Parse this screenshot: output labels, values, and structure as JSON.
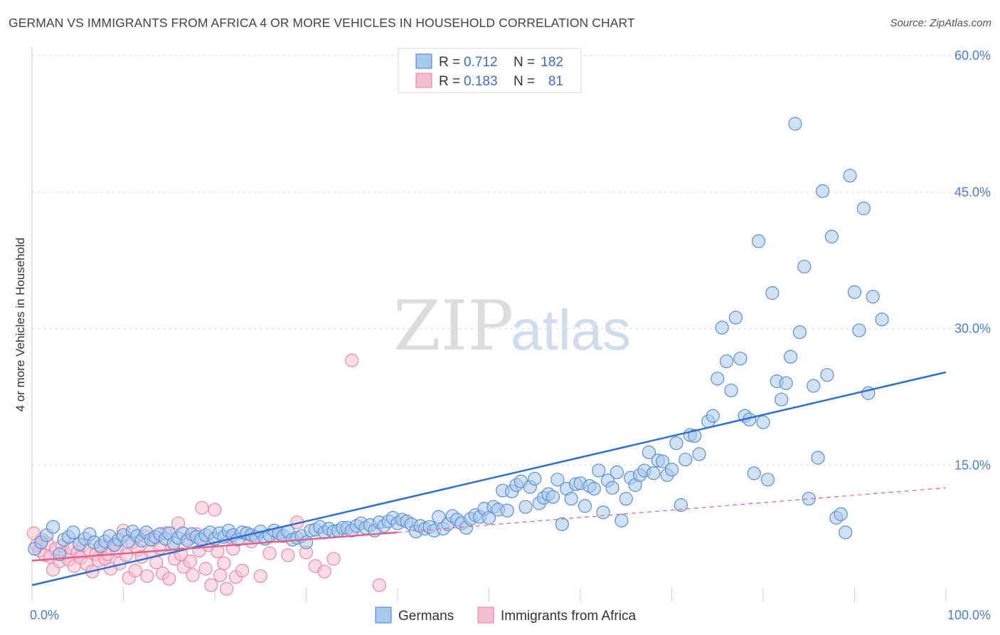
{
  "title": "GERMAN VS IMMIGRANTS FROM AFRICA 4 OR MORE VEHICLES IN HOUSEHOLD CORRELATION CHART",
  "source": "Source: ZipAtlas.com",
  "watermark": {
    "zip": "ZIP",
    "atlas": "atlas"
  },
  "colors": {
    "germans_fill": "#a9c8ee",
    "germans_stroke": "#5a8fd6",
    "germans_line": "#2f6fcf",
    "africa_fill": "#f6bfd0",
    "africa_stroke": "#e889a8",
    "africa_line": "#e0628c",
    "grid": "#dcdcdc",
    "tick_text": "#4a7fd0"
  },
  "legend": {
    "rows": [
      {
        "r_label": "R =",
        "r_value": "0.712",
        "n_label": "N =",
        "n_value": "182"
      },
      {
        "r_label": "R =",
        "r_value": "0.183",
        "n_label": "N =",
        "n_value": "81"
      }
    ]
  },
  "chart_data": {
    "type": "scatter",
    "ylabel": "4 or more Vehicles in Household",
    "xlim": [
      0,
      100
    ],
    "ylim": [
      0,
      60
    ],
    "x_tick_labels": [
      "0.0%",
      "100.0%"
    ],
    "y_ticks": [
      15,
      30,
      45,
      60
    ],
    "y_tick_labels": [
      "15.0%",
      "30.0%",
      "45.0%",
      "60.0%"
    ],
    "grid": true,
    "legend_position": "top-center",
    "series": [
      {
        "name": "Germans",
        "R": 0.712,
        "N": 182,
        "trend": {
          "x": [
            0,
            100
          ],
          "y": [
            1.8,
            25.2
          ]
        },
        "points": [
          [
            0.3,
            5.8
          ],
          [
            1,
            6.5
          ],
          [
            1.6,
            7.3
          ],
          [
            2.3,
            8.2
          ],
          [
            3,
            5.2
          ],
          [
            3.5,
            6.8
          ],
          [
            4,
            7.1
          ],
          [
            4.5,
            7.6
          ],
          [
            5.2,
            6.3
          ],
          [
            5.8,
            6.9
          ],
          [
            6.3,
            7.4
          ],
          [
            6.8,
            6.5
          ],
          [
            7.5,
            6.1
          ],
          [
            8,
            6.6
          ],
          [
            8.5,
            7.2
          ],
          [
            9,
            6.2
          ],
          [
            9.5,
            6.8
          ],
          [
            10,
            7.3
          ],
          [
            10.5,
            6.6
          ],
          [
            11,
            7.7
          ],
          [
            11.5,
            7.2
          ],
          [
            12,
            6.7
          ],
          [
            12.5,
            7.6
          ],
          [
            13,
            6.8
          ],
          [
            13.5,
            7.1
          ],
          [
            14,
            7.4
          ],
          [
            14.6,
            6.9
          ],
          [
            15,
            7.5
          ],
          [
            15.5,
            6.4
          ],
          [
            16,
            7
          ],
          [
            16.5,
            7.5
          ],
          [
            17,
            6.7
          ],
          [
            17.5,
            7.4
          ],
          [
            18,
            7.1
          ],
          [
            18.5,
            6.8
          ],
          [
            19,
            7.3
          ],
          [
            19.5,
            7.6
          ],
          [
            20,
            6.9
          ],
          [
            20.5,
            7.5
          ],
          [
            21,
            7.1
          ],
          [
            21.5,
            7.8
          ],
          [
            22,
            7.3
          ],
          [
            22.5,
            6.8
          ],
          [
            23,
            7.6
          ],
          [
            23.5,
            7.5
          ],
          [
            24,
            7.3
          ],
          [
            24.5,
            7.1
          ],
          [
            25,
            7.7
          ],
          [
            25.5,
            6.9
          ],
          [
            26,
            7.3
          ],
          [
            26.5,
            7.8
          ],
          [
            27,
            7.5
          ],
          [
            27.5,
            7.2
          ],
          [
            28,
            7.7
          ],
          [
            28.5,
            6.8
          ],
          [
            29,
            7
          ],
          [
            29.5,
            7.2
          ],
          [
            30,
            6.5
          ],
          [
            30.5,
            7.8
          ],
          [
            31,
            7.9
          ],
          [
            31.5,
            8.2
          ],
          [
            32,
            7.6
          ],
          [
            32.5,
            8
          ],
          [
            33,
            7.7
          ],
          [
            33.5,
            7.8
          ],
          [
            34,
            8.1
          ],
          [
            34.5,
            8.1
          ],
          [
            35,
            7.8
          ],
          [
            35.5,
            8.3
          ],
          [
            36,
            8.6
          ],
          [
            36.5,
            8.1
          ],
          [
            37,
            8.4
          ],
          [
            37.5,
            7.8
          ],
          [
            38,
            8.7
          ],
          [
            38.5,
            8.3
          ],
          [
            39,
            8.8
          ],
          [
            39.5,
            9.2
          ],
          [
            40,
            8.6
          ],
          [
            40.5,
            9
          ],
          [
            41,
            8.8
          ],
          [
            41.5,
            8.5
          ],
          [
            42,
            7.7
          ],
          [
            42.5,
            8.3
          ],
          [
            43,
            8
          ],
          [
            43.5,
            8.2
          ],
          [
            44,
            7.8
          ],
          [
            44.5,
            9.3
          ],
          [
            45,
            8
          ],
          [
            45.5,
            8.5
          ],
          [
            46,
            9.4
          ],
          [
            46.5,
            9
          ],
          [
            47,
            8.6
          ],
          [
            47.5,
            8.1
          ],
          [
            48,
            9.1
          ],
          [
            48.5,
            9.5
          ],
          [
            49,
            9.3
          ],
          [
            49.5,
            10.2
          ],
          [
            50,
            9.2
          ],
          [
            50.5,
            10.4
          ],
          [
            51,
            10.1
          ],
          [
            51.5,
            12.2
          ],
          [
            52,
            10
          ],
          [
            52.5,
            12.1
          ],
          [
            53,
            12.8
          ],
          [
            53.5,
            13.2
          ],
          [
            54,
            10.4
          ],
          [
            54.5,
            12.6
          ],
          [
            55,
            13.5
          ],
          [
            55.5,
            10.8
          ],
          [
            56,
            11.4
          ],
          [
            56.5,
            11.8
          ],
          [
            57,
            11.5
          ],
          [
            57.5,
            13.4
          ],
          [
            58,
            8.5
          ],
          [
            58.5,
            12.4
          ],
          [
            59,
            11.3
          ],
          [
            59.5,
            12.9
          ],
          [
            60,
            13
          ],
          [
            60.5,
            10.5
          ],
          [
            61,
            12.7
          ],
          [
            61.5,
            12.4
          ],
          [
            62,
            14.4
          ],
          [
            62.5,
            9.8
          ],
          [
            63,
            13.3
          ],
          [
            63.5,
            12.5
          ],
          [
            64,
            14.2
          ],
          [
            64.5,
            8.9
          ],
          [
            65,
            11.3
          ],
          [
            65.5,
            13.6
          ],
          [
            66,
            12.8
          ],
          [
            66.5,
            13.9
          ],
          [
            67,
            14.4
          ],
          [
            67.5,
            16.4
          ],
          [
            68,
            14.1
          ],
          [
            68.5,
            15.5
          ],
          [
            69,
            15.4
          ],
          [
            69.5,
            13.9
          ],
          [
            70,
            14.5
          ],
          [
            70.5,
            17.4
          ],
          [
            71,
            10.6
          ],
          [
            71.5,
            15.6
          ],
          [
            72,
            18.3
          ],
          [
            72.5,
            18.2
          ],
          [
            73,
            16.2
          ],
          [
            74,
            19.8
          ],
          [
            74.5,
            20.4
          ],
          [
            75,
            24.5
          ],
          [
            75.5,
            30.1
          ],
          [
            76,
            26.4
          ],
          [
            76.5,
            23.2
          ],
          [
            77,
            31.2
          ],
          [
            77.5,
            26.7
          ],
          [
            78,
            20.4
          ],
          [
            78.5,
            20
          ],
          [
            79,
            14.1
          ],
          [
            79.5,
            39.6
          ],
          [
            80,
            19.7
          ],
          [
            80.5,
            13.4
          ],
          [
            81,
            33.9
          ],
          [
            81.5,
            24.2
          ],
          [
            82,
            22.2
          ],
          [
            82.5,
            24
          ],
          [
            83,
            26.9
          ],
          [
            83.5,
            52.5
          ],
          [
            84,
            29.6
          ],
          [
            84.5,
            36.8
          ],
          [
            85,
            11.3
          ],
          [
            85.5,
            23.7
          ],
          [
            86,
            15.8
          ],
          [
            86.5,
            45.1
          ],
          [
            87,
            24.9
          ],
          [
            87.5,
            40.1
          ],
          [
            88,
            9.2
          ],
          [
            88.5,
            9.6
          ],
          [
            89,
            7.6
          ],
          [
            89.5,
            46.8
          ],
          [
            90,
            34
          ],
          [
            90.5,
            29.8
          ],
          [
            91,
            43.2
          ],
          [
            91.5,
            22.9
          ],
          [
            92,
            33.5
          ],
          [
            93,
            31
          ]
        ]
      },
      {
        "name": "Immigrants from Africa",
        "R": 0.183,
        "N": 81,
        "trend_solid": {
          "x": [
            0,
            40
          ],
          "y": [
            4.5,
            7.6
          ]
        },
        "trend_dashed": {
          "x": [
            40,
            100
          ],
          "y": [
            7.6,
            12.5
          ]
        },
        "points": [
          [
            0.2,
            7.5
          ],
          [
            0.5,
            6.2
          ],
          [
            0.8,
            5.6
          ],
          [
            1.1,
            6.8
          ],
          [
            1.4,
            5.1
          ],
          [
            1.7,
            6.4
          ],
          [
            2,
            4.9
          ],
          [
            2.3,
            3.5
          ],
          [
            2.6,
            5.8
          ],
          [
            3,
            4.4
          ],
          [
            3.3,
            6.1
          ],
          [
            3.6,
            5.3
          ],
          [
            4,
            4.6
          ],
          [
            4.3,
            5.9
          ],
          [
            4.6,
            3.9
          ],
          [
            5,
            5.4
          ],
          [
            5.3,
            4.8
          ],
          [
            5.6,
            6.2
          ],
          [
            6,
            4.1
          ],
          [
            6.3,
            5.7
          ],
          [
            6.6,
            3.3
          ],
          [
            7,
            5.2
          ],
          [
            7.3,
            4.5
          ],
          [
            7.6,
            5.9
          ],
          [
            8,
            4.7
          ],
          [
            8.3,
            5.2
          ],
          [
            8.6,
            3.6
          ],
          [
            9,
            6.3
          ],
          [
            9.3,
            5.6
          ],
          [
            9.6,
            4.2
          ],
          [
            10,
            7.8
          ],
          [
            10.3,
            5.1
          ],
          [
            10.6,
            2.6
          ],
          [
            11,
            6.5
          ],
          [
            11.3,
            3.4
          ],
          [
            11.6,
            5.7
          ],
          [
            12,
            4.9
          ],
          [
            12.3,
            7.2
          ],
          [
            12.6,
            2.8
          ],
          [
            13,
            5.5
          ],
          [
            13.3,
            6.8
          ],
          [
            13.6,
            4.3
          ],
          [
            14,
            5.9
          ],
          [
            14.3,
            3.1
          ],
          [
            14.6,
            7.5
          ],
          [
            15,
            2.5
          ],
          [
            15.3,
            6
          ],
          [
            15.6,
            4.7
          ],
          [
            16,
            8.6
          ],
          [
            16.3,
            5.2
          ],
          [
            16.6,
            3.8
          ],
          [
            17,
            6.9
          ],
          [
            17.3,
            4.4
          ],
          [
            17.6,
            2.9
          ],
          [
            18,
            7.4
          ],
          [
            18.3,
            5.6
          ],
          [
            18.6,
            10.3
          ],
          [
            19,
            3.6
          ],
          [
            19.3,
            6.2
          ],
          [
            19.6,
            1.8
          ],
          [
            20,
            10.1
          ],
          [
            20.3,
            5.5
          ],
          [
            20.6,
            2.9
          ],
          [
            21,
            4.2
          ],
          [
            21.3,
            1.4
          ],
          [
            21.6,
            7.1
          ],
          [
            22,
            5.8
          ],
          [
            22.3,
            2.7
          ],
          [
            23,
            3.4
          ],
          [
            24,
            6.6
          ],
          [
            25,
            2.8
          ],
          [
            26,
            5.3
          ],
          [
            27,
            7.2
          ],
          [
            28,
            5.1
          ],
          [
            29,
            8.7
          ],
          [
            30,
            5.4
          ],
          [
            31,
            3.9
          ],
          [
            32,
            3.3
          ],
          [
            33,
            4.7
          ],
          [
            35,
            26.5
          ],
          [
            38,
            1.8
          ]
        ]
      }
    ]
  },
  "bottom_legend": [
    {
      "label": "Germans"
    },
    {
      "label": "Immigrants from Africa"
    }
  ]
}
